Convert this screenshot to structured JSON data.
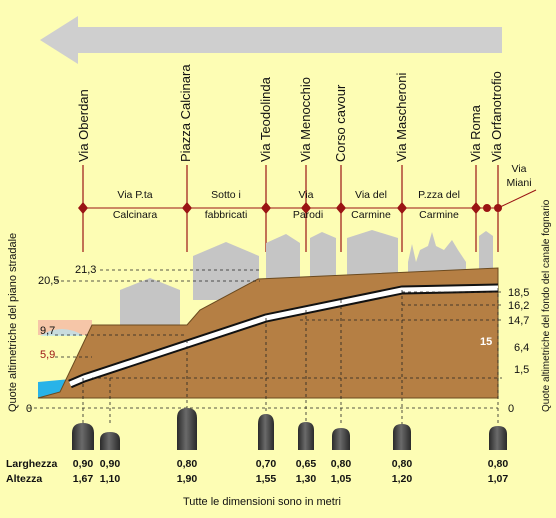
{
  "streets": [
    {
      "id": "oberdan",
      "label": "Via Oberdan"
    },
    {
      "id": "calcinara",
      "label": "Piazza Calcinara"
    },
    {
      "id": "teodolinda",
      "label": "Via Teodolinda"
    },
    {
      "id": "menocchio",
      "label": "Via Menocchio"
    },
    {
      "id": "cavour",
      "label": "Corso cavour"
    },
    {
      "id": "mascheroni",
      "label": "Via Mascheroni"
    },
    {
      "id": "roma",
      "label": "Via Roma"
    },
    {
      "id": "orfanotrofio",
      "label": "Via Orfanotrofio"
    }
  ],
  "segments": [
    {
      "id": "pta-calcinara",
      "line1": "Via P.ta",
      "line2": "Calcinara"
    },
    {
      "id": "sotto-fabbricati",
      "line1": "Sotto i",
      "line2": "fabbricati"
    },
    {
      "id": "parodi",
      "line1": "Via",
      "line2": "Parodi"
    },
    {
      "id": "carmine",
      "line1": "Via del",
      "line2": "Carmine"
    },
    {
      "id": "pzza-carmine",
      "line1": "P.zza del",
      "line2": "Carmine"
    },
    {
      "id": "miani",
      "line1": "Via",
      "line2": "Miani"
    }
  ],
  "left_axis_label": "Quote altimetriche del piano stradale",
  "right_axis_label": "Quote altimetriche del fondo del canale fognario",
  "left_values": [
    "21,3",
    "20,5",
    "9,7",
    "5,9",
    "0"
  ],
  "right_values": [
    "18,5",
    "16,2",
    "14,7",
    "6,4",
    "1,5",
    "0"
  ],
  "marker_value": "15",
  "dimensions": {
    "width_label": "Larghezza",
    "height_label": "Altezza",
    "widths": [
      "0,90",
      "0,90",
      "0,80",
      "0,70",
      "0,65",
      "0,80",
      "0,80",
      "0,80"
    ],
    "heights": [
      "1,67",
      "1,10",
      "1,90",
      "1,55",
      "1,30",
      "1,05",
      "1,20",
      "1,07"
    ]
  },
  "footer_note": "Tutte le dimensioni sono in metri",
  "colors": {
    "background": "#fdfdb4",
    "arrow": "#cfcfcf",
    "buildings": "#c5c5c5",
    "terrain": "#b57f44",
    "channel_line": "#ffffff",
    "water": "#29b3e8",
    "pink_band": "#f6c6a8",
    "marker": "#9a1414",
    "section_fill": "#3e3e3e"
  }
}
